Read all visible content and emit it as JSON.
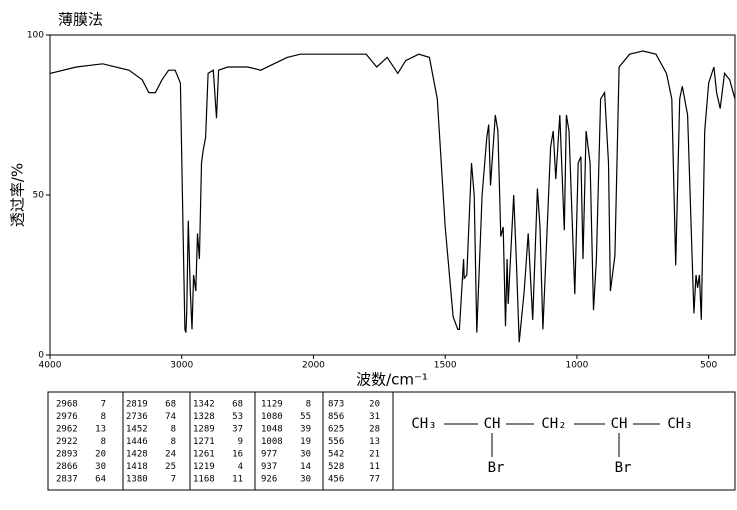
{
  "chart_data": {
    "type": "line",
    "title": "薄膜法",
    "xlabel": "波数/cm⁻¹",
    "ylabel": "透过率/%",
    "x": [
      4000,
      3800,
      3600,
      3400,
      3300,
      3250,
      3200,
      3150,
      3100,
      3050,
      3010,
      2990,
      2976,
      2968,
      2962,
      2950,
      2935,
      2922,
      2910,
      2893,
      2880,
      2866,
      2850,
      2837,
      2819,
      2800,
      2760,
      2736,
      2720,
      2650,
      2500,
      2400,
      2300,
      2200,
      2100,
      2000,
      1900,
      1800,
      1760,
      1720,
      1680,
      1650,
      1600,
      1560,
      1530,
      1500,
      1470,
      1452,
      1446,
      1430,
      1428,
      1418,
      1400,
      1390,
      1380,
      1360,
      1342,
      1335,
      1328,
      1310,
      1300,
      1289,
      1280,
      1271,
      1265,
      1261,
      1240,
      1230,
      1219,
      1200,
      1185,
      1168,
      1150,
      1140,
      1129,
      1100,
      1090,
      1080,
      1065,
      1048,
      1040,
      1030,
      1008,
      995,
      985,
      977,
      965,
      950,
      937,
      926,
      910,
      895,
      880,
      873,
      856,
      840,
      800,
      750,
      700,
      660,
      640,
      625,
      610,
      600,
      580,
      556,
      548,
      542,
      535,
      528,
      515,
      500,
      480,
      470,
      456,
      440,
      420,
      400
    ],
    "values": [
      88,
      90,
      91,
      89,
      86,
      82,
      82,
      86,
      89,
      89,
      85,
      40,
      8,
      7,
      13,
      42,
      20,
      8,
      25,
      20,
      38,
      30,
      60,
      64,
      68,
      88,
      89,
      74,
      89,
      90,
      90,
      89,
      91,
      93,
      94,
      94,
      94,
      94,
      90,
      93,
      88,
      92,
      94,
      93,
      80,
      40,
      12,
      8,
      8,
      30,
      24,
      25,
      60,
      50,
      7,
      50,
      68,
      72,
      53,
      75,
      70,
      37,
      40,
      9,
      30,
      16,
      50,
      30,
      4,
      20,
      38,
      11,
      52,
      40,
      8,
      65,
      70,
      55,
      75,
      39,
      75,
      70,
      19,
      60,
      62,
      30,
      70,
      60,
      14,
      30,
      80,
      82,
      60,
      20,
      31,
      90,
      94,
      95,
      94,
      88,
      80,
      28,
      80,
      84,
      75,
      13,
      25,
      21,
      25,
      11,
      70,
      85,
      90,
      82,
      77,
      88,
      86,
      80
    ],
    "color": "#000000",
    "xlim": [
      4000,
      400
    ],
    "xticks": [
      4000,
      3000,
      2000,
      1500,
      1000,
      500
    ],
    "x_scale_break": 2000,
    "ylim": [
      0,
      100
    ],
    "yticks": [
      0,
      50,
      100
    ]
  },
  "peak_table": {
    "rows": [
      [
        "2968",
        "7",
        "2819",
        "68",
        "1342",
        "68",
        "1129",
        "8",
        "873",
        "20"
      ],
      [
        "2976",
        "8",
        "2736",
        "74",
        "1328",
        "53",
        "1080",
        "55",
        "856",
        "31"
      ],
      [
        "2962",
        "13",
        "1452",
        "8",
        "1289",
        "37",
        "1048",
        "39",
        "625",
        "28"
      ],
      [
        "2922",
        "8",
        "1446",
        "8",
        "1271",
        "9",
        "1008",
        "19",
        "556",
        "13"
      ],
      [
        "2893",
        "20",
        "1428",
        "24",
        "1261",
        "16",
        "977",
        "30",
        "542",
        "21"
      ],
      [
        "2866",
        "30",
        "1418",
        "25",
        "1219",
        "4",
        "937",
        "14",
        "528",
        "11"
      ],
      [
        "2837",
        "64",
        "1380",
        "7",
        "1168",
        "11",
        "926",
        "30",
        "456",
        "77"
      ]
    ]
  },
  "structure": {
    "chain": [
      "CH₃",
      "CH",
      "CH₂",
      "CH",
      "CH₃"
    ],
    "substituents": [
      "Br",
      "Br"
    ]
  }
}
